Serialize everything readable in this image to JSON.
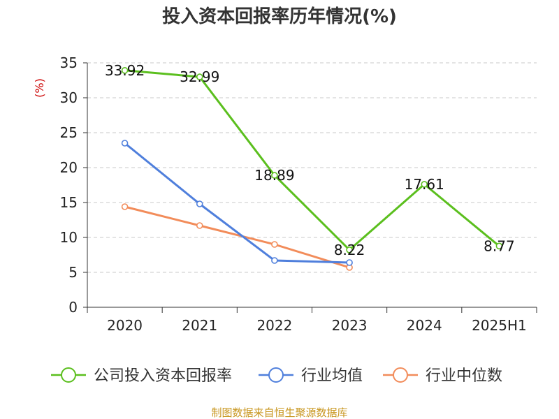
{
  "chart_data": {
    "type": "line",
    "title": "投入资本回报率历年情况(%)",
    "ylabel": "(%)",
    "xlabel": "",
    "categories": [
      "2020",
      "2021",
      "2022",
      "2023",
      "2024",
      "2025H1"
    ],
    "ylim": [
      0,
      35
    ],
    "yticks": [
      0,
      5,
      10,
      15,
      20,
      25,
      30,
      35
    ],
    "grid": true,
    "legend_position": "bottom",
    "series": [
      {
        "name": "公司投入资本回报率",
        "color": "#5bbf1e",
        "values": [
          33.92,
          32.99,
          18.89,
          8.22,
          17.61,
          8.77
        ],
        "labels": [
          "33.92",
          "32.99",
          "18.89",
          "8.22",
          "17.61",
          "8.77"
        ]
      },
      {
        "name": "行业均值",
        "color": "#4f7fdc",
        "values": [
          23.5,
          14.8,
          6.7,
          6.4,
          null,
          null
        ]
      },
      {
        "name": "行业中位数",
        "color": "#f28c5a",
        "values": [
          14.4,
          11.7,
          9.0,
          5.7,
          null,
          null
        ]
      }
    ]
  },
  "source": "制图数据来自恒生聚源数据库"
}
